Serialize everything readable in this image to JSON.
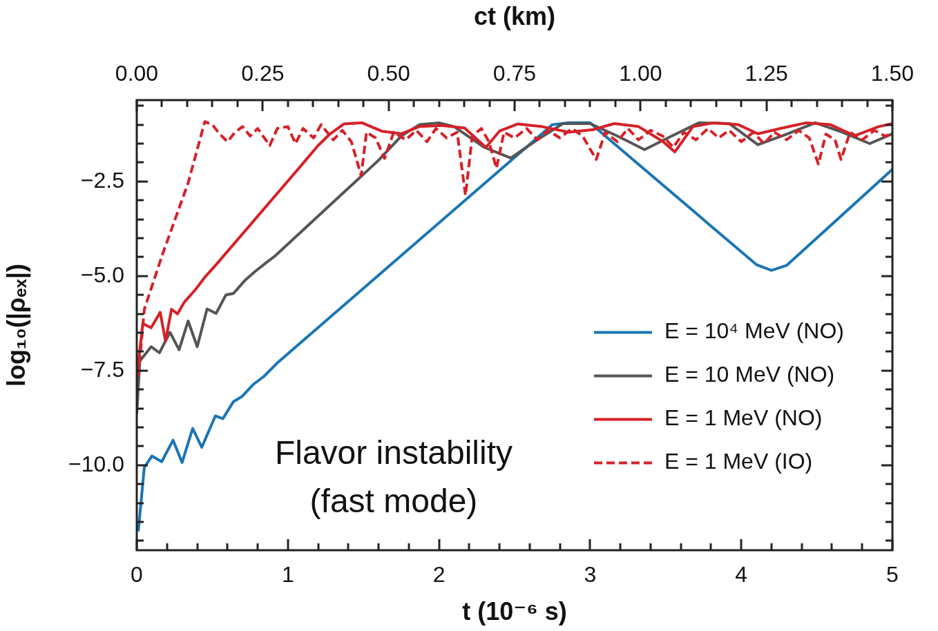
{
  "chart_data": {
    "type": "line",
    "xlabel": "t (10⁻⁶ s)",
    "ylabel": "log₁₀(|ρₑₓ|)",
    "x2label": "ct (km)",
    "xlim": [
      0,
      5
    ],
    "ylim": [
      -12.25,
      -0.35
    ],
    "x2lim": [
      0,
      1.5
    ],
    "xticks": [
      0,
      {
        "value": 0.2,
        "label": null
      },
      {
        "value": 0.4,
        "label": null
      },
      {
        "value": 0.6,
        "label": null
      },
      {
        "value": 0.8,
        "label": null
      },
      1,
      {
        "value": 1.2,
        "label": null
      },
      {
        "value": 1.4,
        "label": null
      },
      {
        "value": 1.6,
        "label": null
      },
      {
        "value": 1.8,
        "label": null
      },
      2,
      {
        "value": 2.2,
        "label": null
      },
      {
        "value": 2.4,
        "label": null
      },
      {
        "value": 2.6,
        "label": null
      },
      {
        "value": 2.8,
        "label": null
      },
      3,
      {
        "value": 3.2,
        "label": null
      },
      {
        "value": 3.4,
        "label": null
      },
      {
        "value": 3.6,
        "label": null
      },
      {
        "value": 3.8,
        "label": null
      },
      4,
      {
        "value": 4.2,
        "label": null
      },
      {
        "value": 4.4,
        "label": null
      },
      {
        "value": 4.6,
        "label": null
      },
      {
        "value": 4.8,
        "label": null
      },
      5
    ],
    "x2ticks": [
      {
        "value": 0,
        "label": "0.00"
      },
      {
        "value": 0.05,
        "label": null
      },
      {
        "value": 0.1,
        "label": null
      },
      {
        "value": 0.15,
        "label": null
      },
      {
        "value": 0.2,
        "label": null
      },
      {
        "value": 0.25,
        "label": "0.25"
      },
      {
        "value": 0.3,
        "label": null
      },
      {
        "value": 0.35,
        "label": null
      },
      {
        "value": 0.4,
        "label": null
      },
      {
        "value": 0.45,
        "label": null
      },
      {
        "value": 0.5,
        "label": "0.50"
      },
      {
        "value": 0.55,
        "label": null
      },
      {
        "value": 0.6,
        "label": null
      },
      {
        "value": 0.65,
        "label": null
      },
      {
        "value": 0.7,
        "label": null
      },
      {
        "value": 0.75,
        "label": "0.75"
      },
      {
        "value": 0.8,
        "label": null
      },
      {
        "value": 0.85,
        "label": null
      },
      {
        "value": 0.9,
        "label": null
      },
      {
        "value": 0.95,
        "label": null
      },
      {
        "value": 1.0,
        "label": "1.00"
      },
      {
        "value": 1.05,
        "label": null
      },
      {
        "value": 1.1,
        "label": null
      },
      {
        "value": 1.15,
        "label": null
      },
      {
        "value": 1.2,
        "label": null
      },
      {
        "value": 1.25,
        "label": "1.25"
      },
      {
        "value": 1.3,
        "label": null
      },
      {
        "value": 1.35,
        "label": null
      },
      {
        "value": 1.4,
        "label": null
      },
      {
        "value": 1.45,
        "label": null
      },
      {
        "value": 1.5,
        "label": "1.50"
      }
    ],
    "yticks": [
      {
        "value": -12,
        "label": null
      },
      {
        "value": -11.5,
        "label": null
      },
      {
        "value": -11,
        "label": null
      },
      {
        "value": -10.5,
        "label": null
      },
      {
        "value": -10,
        "label": "−10.0"
      },
      {
        "value": -9.5,
        "label": null
      },
      {
        "value": -9,
        "label": null
      },
      {
        "value": -8.5,
        "label": null
      },
      {
        "value": -8,
        "label": null
      },
      {
        "value": -7.5,
        "label": "−7.5"
      },
      {
        "value": -7,
        "label": null
      },
      {
        "value": -6.5,
        "label": null
      },
      {
        "value": -6,
        "label": null
      },
      {
        "value": -5.5,
        "label": null
      },
      {
        "value": -5,
        "label": "−5.0"
      },
      {
        "value": -4.5,
        "label": null
      },
      {
        "value": -4,
        "label": null
      },
      {
        "value": -3.5,
        "label": null
      },
      {
        "value": -3,
        "label": null
      },
      {
        "value": -2.5,
        "label": "−2.5"
      },
      {
        "value": -2,
        "label": null
      },
      {
        "value": -1.5,
        "label": null
      },
      {
        "value": -1,
        "label": null
      },
      {
        "value": -0.5,
        "label": null
      }
    ],
    "grid": false,
    "legend": "bottom right",
    "marker": "none",
    "annotations": [
      "Flavor instability\n(fast mode)"
    ],
    "series": [
      {
        "name": "E = 10⁴ MeV (NO)",
        "color": "#1a75b5",
        "line_style": "solid",
        "x": [
          0.01,
          0.05,
          0.1,
          0.165,
          0.24,
          0.3,
          0.37,
          0.43,
          0.52,
          0.57,
          0.64,
          0.695,
          0.77,
          0.84,
          0.935,
          2.75,
          2.85,
          3.0,
          3.1,
          4.1,
          4.2,
          4.3,
          5.0
        ],
        "values": [
          -11.75,
          -10.06,
          -9.76,
          -9.91,
          -9.34,
          -9.93,
          -9.03,
          -9.53,
          -8.7,
          -8.77,
          -8.32,
          -8.19,
          -7.87,
          -7.66,
          -7.28,
          -1.0,
          -0.95,
          -0.95,
          -1.3,
          -4.7,
          -4.85,
          -4.72,
          -2.18
        ]
      },
      {
        "name": "E = 10 MeV (NO)",
        "color": "#555555",
        "line_style": "solid",
        "x": [
          0,
          0.02,
          0.095,
          0.15,
          0.22,
          0.28,
          0.34,
          0.4,
          0.465,
          0.525,
          0.59,
          0.64,
          0.715,
          0.78,
          0.85,
          0.915,
          1.6,
          1.75,
          1.87,
          2.0,
          2.1,
          2.3,
          2.475,
          2.65,
          2.82,
          3.0,
          3.18,
          3.36,
          3.54,
          3.72,
          3.92,
          4.11,
          4.3,
          4.49,
          4.67,
          4.85,
          5.0
        ],
        "values": [
          -8.65,
          -7.25,
          -6.87,
          -7.03,
          -6.49,
          -6.95,
          -6.19,
          -6.87,
          -5.87,
          -5.99,
          -5.5,
          -5.46,
          -5.12,
          -4.89,
          -4.67,
          -4.47,
          -1.94,
          -1.3,
          -1.0,
          -0.95,
          -1.05,
          -1.6,
          -1.88,
          -1.4,
          -0.97,
          -0.97,
          -1.3,
          -1.66,
          -1.3,
          -0.95,
          -0.97,
          -1.53,
          -1.25,
          -0.95,
          -1.2,
          -1.5,
          -1.24
        ]
      },
      {
        "name": "E = 1 MeV (NO)",
        "color": "#d62027",
        "line_style": "solid",
        "x": [
          0,
          0.04,
          0.095,
          0.155,
          0.19,
          0.23,
          0.27,
          0.315,
          0.39,
          0.455,
          0.525,
          1.105,
          1.2,
          1.28,
          1.37,
          1.49,
          1.62,
          1.75,
          1.87,
          2.02,
          2.17,
          2.31,
          2.4,
          2.52,
          2.68,
          2.86,
          3.02,
          3.16,
          3.32,
          3.48,
          3.56,
          3.68,
          3.82,
          3.98,
          4.11,
          4.27,
          4.43,
          4.59,
          4.75,
          4.91,
          5.0
        ],
        "values": [
          -7.67,
          -6.26,
          -6.37,
          -5.96,
          -6.72,
          -5.88,
          -6.0,
          -5.69,
          -5.35,
          -5.01,
          -4.7,
          -2.0,
          -1.55,
          -1.24,
          -0.98,
          -0.95,
          -1.17,
          -1.24,
          -1.05,
          -1.02,
          -1.09,
          -1.6,
          -1.17,
          -0.98,
          -1.05,
          -1.2,
          -1.13,
          -0.97,
          -1.05,
          -1.44,
          -1.72,
          -1.05,
          -0.95,
          -1.0,
          -1.24,
          -1.09,
          -0.95,
          -1.0,
          -1.29,
          -1.05,
          -0.97
        ]
      },
      {
        "name": "E = 1 MeV (IO)",
        "color": "#d62027",
        "line_style": "dashed",
        "x": [
          0.01,
          0.05,
          0.17,
          0.34,
          0.45,
          0.5,
          0.55,
          0.6,
          0.65,
          0.7,
          0.75,
          0.8,
          0.88,
          0.93,
          1.0,
          1.05,
          1.1,
          1.17,
          1.22,
          1.3,
          1.36,
          1.42,
          1.485,
          1.52,
          1.58,
          1.64,
          1.7,
          1.78,
          1.85,
          1.92,
          1.98,
          2.05,
          2.12,
          2.175,
          2.22,
          2.28,
          2.33,
          2.38,
          2.43,
          2.5,
          2.58,
          2.65,
          2.72,
          2.8,
          2.88,
          2.95,
          3.04,
          3.1,
          3.18,
          3.25,
          3.32,
          3.4,
          3.48,
          3.55,
          3.62,
          3.7,
          3.78,
          3.85,
          3.92,
          4.0,
          4.08,
          4.15,
          4.22,
          4.3,
          4.38,
          4.45,
          4.51,
          4.56,
          4.62,
          4.66,
          4.72,
          4.8,
          4.88,
          4.95,
          5.0
        ],
        "values": [
          -7.65,
          -5.88,
          -4.43,
          -2.54,
          -0.92,
          -1.0,
          -1.25,
          -1.45,
          -1.2,
          -1.05,
          -1.3,
          -1.1,
          -1.55,
          -1.1,
          -1.05,
          -1.5,
          -1.1,
          -1.35,
          -1.0,
          -1.4,
          -1.15,
          -1.45,
          -2.35,
          -1.2,
          -1.35,
          -1.89,
          -1.2,
          -1.4,
          -1.15,
          -1.45,
          -1.1,
          -1.35,
          -1.2,
          -2.87,
          -1.3,
          -1.1,
          -1.45,
          -2.15,
          -1.2,
          -1.35,
          -1.1,
          -1.4,
          -1.15,
          -1.35,
          -1.1,
          -1.3,
          -1.92,
          -1.2,
          -1.45,
          -1.1,
          -1.4,
          -1.15,
          -1.3,
          -1.6,
          -1.2,
          -1.4,
          -1.1,
          -1.35,
          -1.15,
          -1.45,
          -1.2,
          -1.5,
          -1.2,
          -1.4,
          -1.15,
          -1.35,
          -2.04,
          -1.25,
          -1.4,
          -1.92,
          -1.2,
          -1.4,
          -1.15,
          -1.3,
          -1.25
        ]
      }
    ]
  }
}
